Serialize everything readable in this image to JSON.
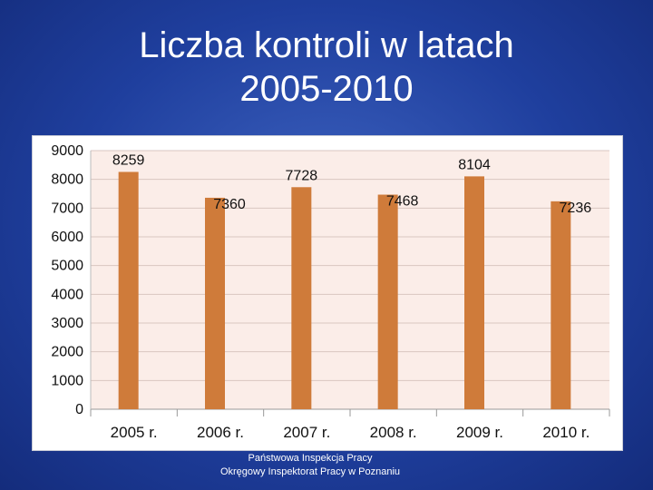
{
  "slide": {
    "title_line1": "Liczba kontroli w latach",
    "title_line2": "2005-2010"
  },
  "footer": {
    "line1": "Państwowa Inspekcja Pracy",
    "line2": "Okręgowy Inspektorat Pracy w Poznaniu"
  },
  "colors": {
    "background": "#1f3f9e",
    "plot_area": "#fbede8",
    "bar": "#cf7b3a",
    "text": "#ffffff"
  },
  "chart_data": {
    "type": "bar",
    "title": "",
    "xlabel": "",
    "ylabel": "",
    "categories": [
      "2005 r.",
      "2006 r.",
      "2007 r.",
      "2008 r.",
      "2009 r.",
      "2010 r."
    ],
    "series": [
      {
        "values": [
          8259,
          7360,
          7728,
          7468,
          8104,
          7236
        ],
        "color": "#cf7b3a"
      }
    ],
    "data_labels": [
      "8259",
      "7360",
      "7728",
      "7468",
      "8104",
      "7236"
    ],
    "ylim": [
      0,
      9000
    ],
    "yticks": [
      0,
      1000,
      2000,
      3000,
      4000,
      5000,
      6000,
      7000,
      8000,
      9000
    ],
    "ytick_labels": [
      "0",
      "1000",
      "2000",
      "3000",
      "4000",
      "5000",
      "6000",
      "7000",
      "8000",
      "9000"
    ],
    "grid": true,
    "legend": "none"
  }
}
